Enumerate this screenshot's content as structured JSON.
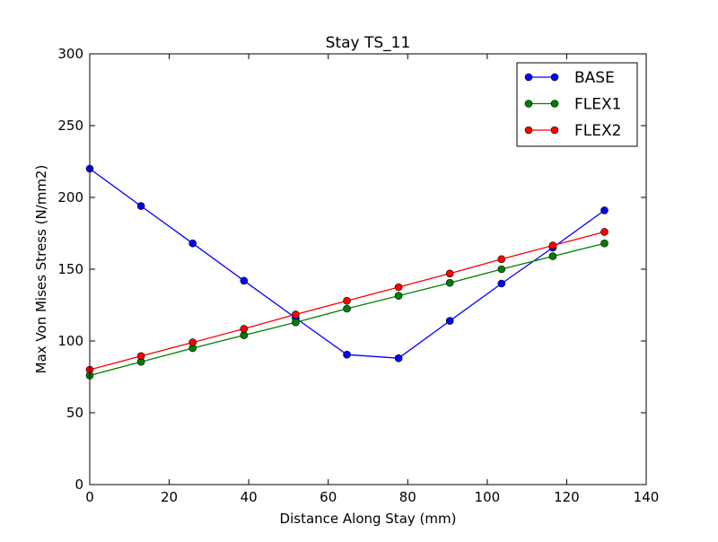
{
  "chart_data": {
    "type": "line",
    "title": "Stay TS_11",
    "xlabel": "Distance Along Stay (mm)",
    "ylabel": "Max Von Mises Stress (N/mm2)",
    "xlim": [
      0,
      140
    ],
    "ylim": [
      0,
      300
    ],
    "xticks": [
      0,
      20,
      40,
      60,
      80,
      100,
      120,
      140
    ],
    "yticks": [
      0,
      50,
      100,
      150,
      200,
      250,
      300
    ],
    "grid": false,
    "legend_position": "top-right",
    "x": [
      0,
      12.9,
      25.9,
      38.8,
      51.8,
      64.7,
      77.7,
      90.6,
      103.6,
      116.5,
      129.5
    ],
    "series": [
      {
        "name": "BASE",
        "color": "#0000ff",
        "values": [
          220,
          194,
          168,
          142,
          116,
          90.5,
          88,
          114,
          140,
          165,
          191
        ]
      },
      {
        "name": "FLEX1",
        "color": "#008000",
        "values": [
          76,
          85.5,
          95,
          104,
          113,
          122.5,
          131.5,
          140.5,
          150,
          159,
          168
        ]
      },
      {
        "name": "FLEX2",
        "color": "#ff0000",
        "values": [
          80,
          89.5,
          99,
          108.5,
          118.5,
          128,
          137.5,
          147,
          157,
          166.5,
          176
        ]
      }
    ]
  }
}
